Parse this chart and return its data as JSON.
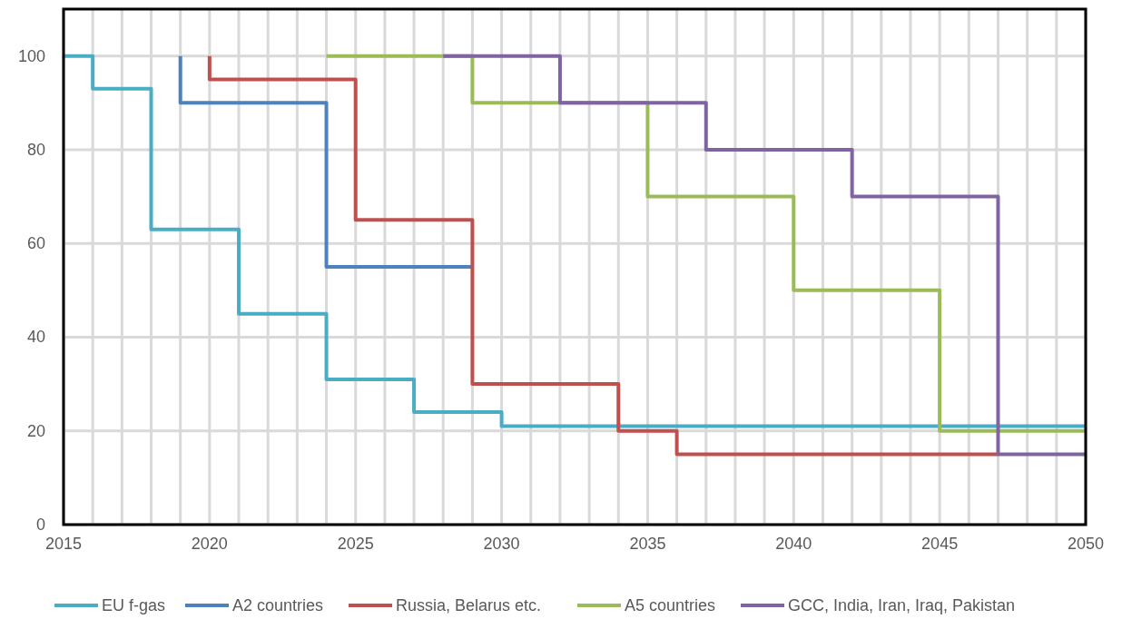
{
  "chart_data": {
    "type": "step",
    "xlim": [
      2015,
      2050
    ],
    "ylim": [
      0,
      110
    ],
    "xticks": [
      2015,
      {
        "value": 2016,
        "label": null
      },
      {
        "value": 2017,
        "label": null
      },
      {
        "value": 2018,
        "label": null
      },
      {
        "value": 2019,
        "label": null
      },
      2020,
      {
        "value": 2021,
        "label": null
      },
      {
        "value": 2022,
        "label": null
      },
      {
        "value": 2023,
        "label": null
      },
      {
        "value": 2024,
        "label": null
      },
      2025,
      {
        "value": 2026,
        "label": null
      },
      {
        "value": 2027,
        "label": null
      },
      {
        "value": 2028,
        "label": null
      },
      {
        "value": 2029,
        "label": null
      },
      2030,
      {
        "value": 2031,
        "label": null
      },
      {
        "value": 2032,
        "label": null
      },
      {
        "value": 2033,
        "label": null
      },
      {
        "value": 2034,
        "label": null
      },
      2035,
      {
        "value": 2036,
        "label": null
      },
      {
        "value": 2037,
        "label": null
      },
      {
        "value": 2038,
        "label": null
      },
      {
        "value": 2039,
        "label": null
      },
      2040,
      {
        "value": 2041,
        "label": null
      },
      {
        "value": 2042,
        "label": null
      },
      {
        "value": 2043,
        "label": null
      },
      {
        "value": 2044,
        "label": null
      },
      2045,
      {
        "value": 2046,
        "label": null
      },
      {
        "value": 2047,
        "label": null
      },
      {
        "value": 2048,
        "label": null
      },
      {
        "value": 2049,
        "label": null
      },
      2050
    ],
    "yticks": [
      0,
      20,
      40,
      60,
      80,
      100
    ],
    "grid": true,
    "legend": "bottom",
    "line_style": "solid",
    "series": [
      {
        "name": "EU f-gas",
        "color": "#4bacc6",
        "x": [
          2015,
          2016,
          2018,
          2021,
          2024,
          2027,
          2030,
          2050
        ],
        "values": [
          100,
          93,
          63,
          45,
          31,
          24,
          21,
          21
        ]
      },
      {
        "name": "A2 countries",
        "color": "#4f81bd",
        "x": [
          2019,
          2019,
          2024,
          2029
        ],
        "values": [
          100,
          90,
          55,
          55
        ]
      },
      {
        "name": "Russia, Belarus etc.",
        "color": "#c0504d",
        "x": [
          2020,
          2020,
          2025,
          2029,
          2034,
          2036,
          2047
        ],
        "values": [
          100,
          95,
          65,
          30,
          20,
          15,
          15
        ]
      },
      {
        "name": "A5 countries",
        "color": "#9bbb59",
        "x": [
          2024,
          2029,
          2035,
          2040,
          2045,
          2050
        ],
        "values": [
          100,
          90,
          70,
          50,
          20,
          20
        ]
      },
      {
        "name": "GCC, India, Iran, Iraq, Pakistan",
        "color": "#8064a2",
        "x": [
          2028,
          2032,
          2037,
          2042,
          2047,
          2050
        ],
        "values": [
          100,
          90,
          80,
          70,
          15,
          15
        ]
      }
    ]
  }
}
